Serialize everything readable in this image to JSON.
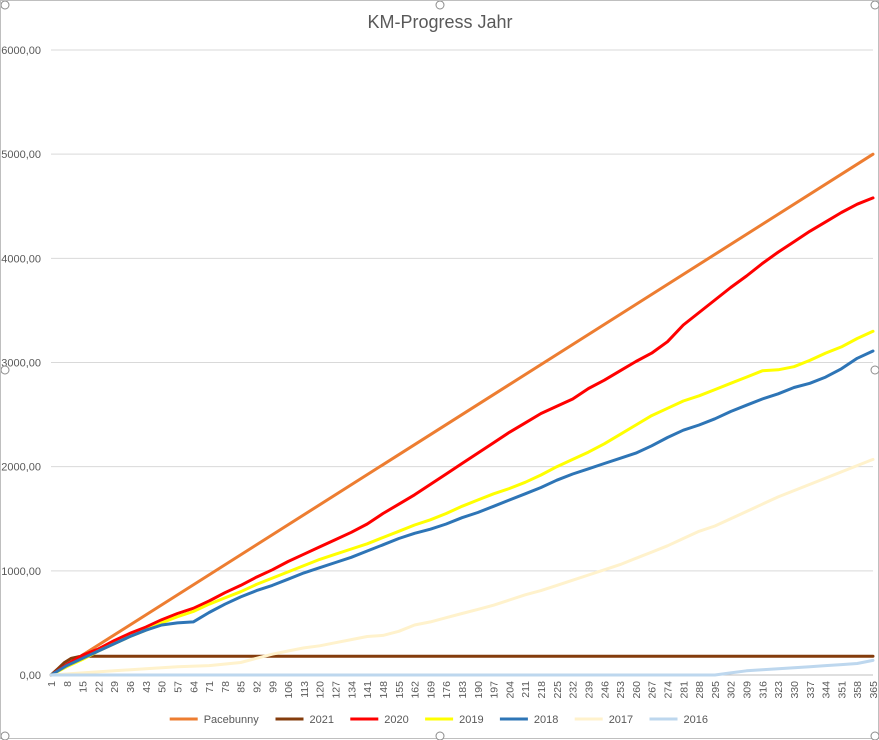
{
  "chart_data": {
    "type": "line",
    "title": "KM-Progress Jahr",
    "xlabel": "",
    "ylabel": "",
    "ylim": [
      0,
      6000
    ],
    "y_ticks": [
      "0,00",
      "1000,00",
      "2000,00",
      "3000,00",
      "4000,00",
      "5000,00",
      "6000,00"
    ],
    "y_tick_values": [
      0,
      1000,
      2000,
      3000,
      4000,
      5000,
      6000
    ],
    "xlim": [
      1,
      365
    ],
    "x_ticks": [
      "1",
      "8",
      "15",
      "22",
      "29",
      "36",
      "43",
      "50",
      "57",
      "64",
      "71",
      "78",
      "85",
      "92",
      "99",
      "106",
      "113",
      "120",
      "127",
      "134",
      "141",
      "148",
      "155",
      "162",
      "169",
      "176",
      "183",
      "190",
      "197",
      "204",
      "211",
      "218",
      "225",
      "232",
      "239",
      "246",
      "253",
      "260",
      "267",
      "274",
      "281",
      "288",
      "295",
      "302",
      "309",
      "316",
      "323",
      "330",
      "337",
      "344",
      "351",
      "358",
      "365"
    ],
    "grid": "horizontal",
    "legend_position": "bottom",
    "series": [
      {
        "name": "Pacebunny",
        "color": "#ED7D31",
        "points": [
          [
            1,
            0
          ],
          [
            365,
            5000
          ]
        ]
      },
      {
        "name": "2021",
        "color": "#843C0C",
        "points": [
          [
            1,
            0
          ],
          [
            4,
            60
          ],
          [
            7,
            120
          ],
          [
            10,
            160
          ],
          [
            13,
            175
          ],
          [
            16,
            180
          ],
          [
            365,
            180
          ]
        ]
      },
      {
        "name": "2020",
        "color": "#FF0000",
        "points": [
          [
            1,
            0
          ],
          [
            8,
            100
          ],
          [
            15,
            190
          ],
          [
            22,
            250
          ],
          [
            29,
            330
          ],
          [
            36,
            400
          ],
          [
            43,
            460
          ],
          [
            50,
            530
          ],
          [
            57,
            590
          ],
          [
            64,
            640
          ],
          [
            71,
            710
          ],
          [
            78,
            790
          ],
          [
            85,
            860
          ],
          [
            92,
            940
          ],
          [
            99,
            1010
          ],
          [
            106,
            1090
          ],
          [
            113,
            1160
          ],
          [
            120,
            1230
          ],
          [
            127,
            1300
          ],
          [
            134,
            1370
          ],
          [
            141,
            1450
          ],
          [
            148,
            1550
          ],
          [
            155,
            1640
          ],
          [
            162,
            1730
          ],
          [
            169,
            1830
          ],
          [
            176,
            1930
          ],
          [
            183,
            2030
          ],
          [
            190,
            2130
          ],
          [
            197,
            2230
          ],
          [
            204,
            2330
          ],
          [
            211,
            2420
          ],
          [
            218,
            2510
          ],
          [
            225,
            2580
          ],
          [
            232,
            2650
          ],
          [
            239,
            2750
          ],
          [
            246,
            2830
          ],
          [
            253,
            2920
          ],
          [
            260,
            3010
          ],
          [
            267,
            3090
          ],
          [
            274,
            3200
          ],
          [
            281,
            3360
          ],
          [
            288,
            3480
          ],
          [
            295,
            3600
          ],
          [
            302,
            3720
          ],
          [
            309,
            3830
          ],
          [
            316,
            3950
          ],
          [
            323,
            4060
          ],
          [
            330,
            4160
          ],
          [
            337,
            4260
          ],
          [
            344,
            4350
          ],
          [
            351,
            4440
          ],
          [
            358,
            4520
          ],
          [
            365,
            4580
          ]
        ]
      },
      {
        "name": "2019",
        "color": "#FFFF00",
        "points": [
          [
            1,
            0
          ],
          [
            8,
            80
          ],
          [
            15,
            150
          ],
          [
            22,
            230
          ],
          [
            29,
            300
          ],
          [
            36,
            370
          ],
          [
            43,
            430
          ],
          [
            50,
            500
          ],
          [
            57,
            560
          ],
          [
            64,
            610
          ],
          [
            71,
            680
          ],
          [
            78,
            740
          ],
          [
            85,
            800
          ],
          [
            92,
            870
          ],
          [
            99,
            930
          ],
          [
            106,
            990
          ],
          [
            113,
            1050
          ],
          [
            120,
            1110
          ],
          [
            127,
            1160
          ],
          [
            134,
            1210
          ],
          [
            141,
            1260
          ],
          [
            148,
            1320
          ],
          [
            155,
            1380
          ],
          [
            162,
            1440
          ],
          [
            169,
            1490
          ],
          [
            176,
            1550
          ],
          [
            183,
            1620
          ],
          [
            190,
            1680
          ],
          [
            197,
            1740
          ],
          [
            204,
            1790
          ],
          [
            211,
            1850
          ],
          [
            218,
            1920
          ],
          [
            225,
            2000
          ],
          [
            232,
            2070
          ],
          [
            239,
            2140
          ],
          [
            246,
            2220
          ],
          [
            253,
            2310
          ],
          [
            260,
            2400
          ],
          [
            267,
            2490
          ],
          [
            274,
            2560
          ],
          [
            281,
            2630
          ],
          [
            288,
            2680
          ],
          [
            295,
            2740
          ],
          [
            302,
            2800
          ],
          [
            309,
            2860
          ],
          [
            316,
            2920
          ],
          [
            323,
            2930
          ],
          [
            330,
            2960
          ],
          [
            337,
            3020
          ],
          [
            344,
            3090
          ],
          [
            351,
            3150
          ],
          [
            358,
            3230
          ],
          [
            365,
            3300
          ]
        ]
      },
      {
        "name": "2018",
        "color": "#2E75B6",
        "points": [
          [
            1,
            0
          ],
          [
            8,
            90
          ],
          [
            15,
            160
          ],
          [
            22,
            230
          ],
          [
            29,
            300
          ],
          [
            36,
            370
          ],
          [
            43,
            430
          ],
          [
            50,
            480
          ],
          [
            57,
            500
          ],
          [
            64,
            510
          ],
          [
            71,
            600
          ],
          [
            78,
            680
          ],
          [
            85,
            750
          ],
          [
            92,
            810
          ],
          [
            99,
            860
          ],
          [
            106,
            920
          ],
          [
            113,
            980
          ],
          [
            120,
            1030
          ],
          [
            127,
            1080
          ],
          [
            134,
            1130
          ],
          [
            141,
            1190
          ],
          [
            148,
            1250
          ],
          [
            155,
            1310
          ],
          [
            162,
            1360
          ],
          [
            169,
            1400
          ],
          [
            176,
            1450
          ],
          [
            183,
            1510
          ],
          [
            190,
            1560
          ],
          [
            197,
            1620
          ],
          [
            204,
            1680
          ],
          [
            211,
            1740
          ],
          [
            218,
            1800
          ],
          [
            225,
            1870
          ],
          [
            232,
            1930
          ],
          [
            239,
            1980
          ],
          [
            246,
            2030
          ],
          [
            253,
            2080
          ],
          [
            260,
            2130
          ],
          [
            267,
            2200
          ],
          [
            274,
            2280
          ],
          [
            281,
            2350
          ],
          [
            288,
            2400
          ],
          [
            295,
            2460
          ],
          [
            302,
            2530
          ],
          [
            309,
            2590
          ],
          [
            316,
            2650
          ],
          [
            323,
            2700
          ],
          [
            330,
            2760
          ],
          [
            337,
            2800
          ],
          [
            344,
            2860
          ],
          [
            351,
            2940
          ],
          [
            358,
            3040
          ],
          [
            365,
            3110
          ]
        ]
      },
      {
        "name": "2017",
        "color": "#FFF2CC",
        "points": [
          [
            1,
            0
          ],
          [
            15,
            20
          ],
          [
            29,
            40
          ],
          [
            43,
            60
          ],
          [
            57,
            80
          ],
          [
            71,
            90
          ],
          [
            85,
            120
          ],
          [
            92,
            160
          ],
          [
            99,
            200
          ],
          [
            106,
            230
          ],
          [
            113,
            260
          ],
          [
            120,
            280
          ],
          [
            127,
            310
          ],
          [
            134,
            340
          ],
          [
            141,
            370
          ],
          [
            148,
            380
          ],
          [
            155,
            420
          ],
          [
            162,
            480
          ],
          [
            169,
            510
          ],
          [
            176,
            550
          ],
          [
            183,
            590
          ],
          [
            190,
            630
          ],
          [
            197,
            670
          ],
          [
            204,
            720
          ],
          [
            211,
            770
          ],
          [
            218,
            810
          ],
          [
            225,
            860
          ],
          [
            232,
            910
          ],
          [
            239,
            960
          ],
          [
            246,
            1010
          ],
          [
            253,
            1060
          ],
          [
            260,
            1120
          ],
          [
            267,
            1180
          ],
          [
            274,
            1240
          ],
          [
            281,
            1310
          ],
          [
            288,
            1380
          ],
          [
            295,
            1430
          ],
          [
            302,
            1500
          ],
          [
            309,
            1570
          ],
          [
            316,
            1640
          ],
          [
            323,
            1710
          ],
          [
            330,
            1770
          ],
          [
            337,
            1830
          ],
          [
            344,
            1890
          ],
          [
            351,
            1950
          ],
          [
            358,
            2010
          ],
          [
            365,
            2070
          ]
        ]
      },
      {
        "name": "2016",
        "color": "#BDD7EE",
        "points": [
          [
            1,
            0
          ],
          [
            295,
            0
          ],
          [
            302,
            20
          ],
          [
            309,
            40
          ],
          [
            316,
            50
          ],
          [
            323,
            60
          ],
          [
            330,
            70
          ],
          [
            337,
            80
          ],
          [
            344,
            90
          ],
          [
            351,
            100
          ],
          [
            358,
            110
          ],
          [
            365,
            140
          ]
        ]
      }
    ]
  }
}
